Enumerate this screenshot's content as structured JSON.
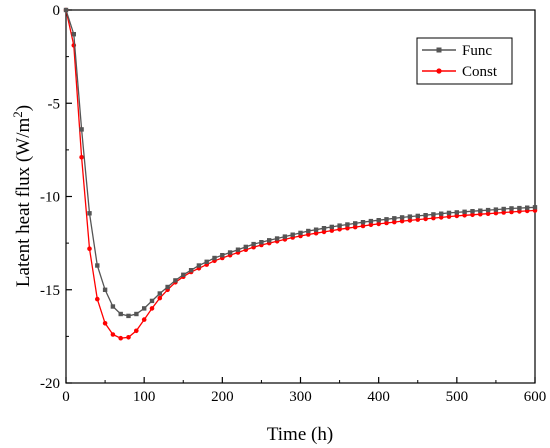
{
  "chart_data": {
    "type": "line",
    "xlabel": "Time (h)",
    "ylabel_main": "Latent heat flux (W/m",
    "ylabel_sup": "2",
    "ylabel_close": ")",
    "xlim": [
      0,
      600
    ],
    "ylim": [
      -20,
      0
    ],
    "x_ticks": [
      0,
      100,
      200,
      300,
      400,
      500,
      600
    ],
    "y_ticks": [
      0,
      -5,
      -10,
      -15,
      -20
    ],
    "grid": false,
    "legend_position": "top-right",
    "series": [
      {
        "name": "Func",
        "color": "#555555",
        "marker": "square",
        "x": [
          0,
          10,
          20,
          30,
          40,
          50,
          60,
          70,
          80,
          90,
          100,
          110,
          120,
          130,
          140,
          150,
          160,
          170,
          180,
          190,
          200,
          210,
          220,
          230,
          240,
          250,
          260,
          270,
          280,
          290,
          300,
          310,
          320,
          330,
          340,
          350,
          360,
          370,
          380,
          390,
          400,
          410,
          420,
          430,
          440,
          450,
          460,
          470,
          480,
          490,
          500,
          510,
          520,
          530,
          540,
          550,
          560,
          570,
          580,
          590,
          600
        ],
        "y": [
          0,
          -1.3,
          -6.4,
          -10.9,
          -13.7,
          -15.0,
          -15.9,
          -16.3,
          -16.4,
          -16.3,
          -16.0,
          -15.6,
          -15.2,
          -14.85,
          -14.5,
          -14.2,
          -13.95,
          -13.7,
          -13.5,
          -13.3,
          -13.15,
          -13.0,
          -12.85,
          -12.7,
          -12.55,
          -12.45,
          -12.35,
          -12.25,
          -12.15,
          -12.05,
          -11.95,
          -11.85,
          -11.78,
          -11.7,
          -11.63,
          -11.56,
          -11.5,
          -11.44,
          -11.38,
          -11.32,
          -11.27,
          -11.22,
          -11.17,
          -11.12,
          -11.08,
          -11.04,
          -11.0,
          -10.96,
          -10.92,
          -10.88,
          -10.85,
          -10.82,
          -10.79,
          -10.76,
          -10.73,
          -10.7,
          -10.67,
          -10.64,
          -10.62,
          -10.6,
          -10.58
        ]
      },
      {
        "name": "Const",
        "color": "#ff0000",
        "marker": "circle",
        "x": [
          0,
          10,
          20,
          30,
          40,
          50,
          60,
          70,
          80,
          90,
          100,
          110,
          120,
          130,
          140,
          150,
          160,
          170,
          180,
          190,
          200,
          210,
          220,
          230,
          240,
          250,
          260,
          270,
          280,
          290,
          300,
          310,
          320,
          330,
          340,
          350,
          360,
          370,
          380,
          390,
          400,
          410,
          420,
          430,
          440,
          450,
          460,
          470,
          480,
          490,
          500,
          510,
          520,
          530,
          540,
          550,
          560,
          570,
          580,
          590,
          600
        ],
        "y": [
          0,
          -1.9,
          -7.9,
          -12.8,
          -15.5,
          -16.8,
          -17.4,
          -17.6,
          -17.55,
          -17.2,
          -16.6,
          -16.0,
          -15.45,
          -15.0,
          -14.6,
          -14.3,
          -14.05,
          -13.85,
          -13.65,
          -13.45,
          -13.3,
          -13.15,
          -13.0,
          -12.85,
          -12.72,
          -12.6,
          -12.5,
          -12.4,
          -12.3,
          -12.2,
          -12.12,
          -12.04,
          -11.97,
          -11.9,
          -11.83,
          -11.76,
          -11.7,
          -11.64,
          -11.58,
          -11.52,
          -11.47,
          -11.42,
          -11.37,
          -11.32,
          -11.28,
          -11.24,
          -11.2,
          -11.16,
          -11.12,
          -11.08,
          -11.04,
          -11.01,
          -10.98,
          -10.95,
          -10.92,
          -10.89,
          -10.86,
          -10.83,
          -10.8,
          -10.77,
          -10.75
        ]
      }
    ]
  }
}
